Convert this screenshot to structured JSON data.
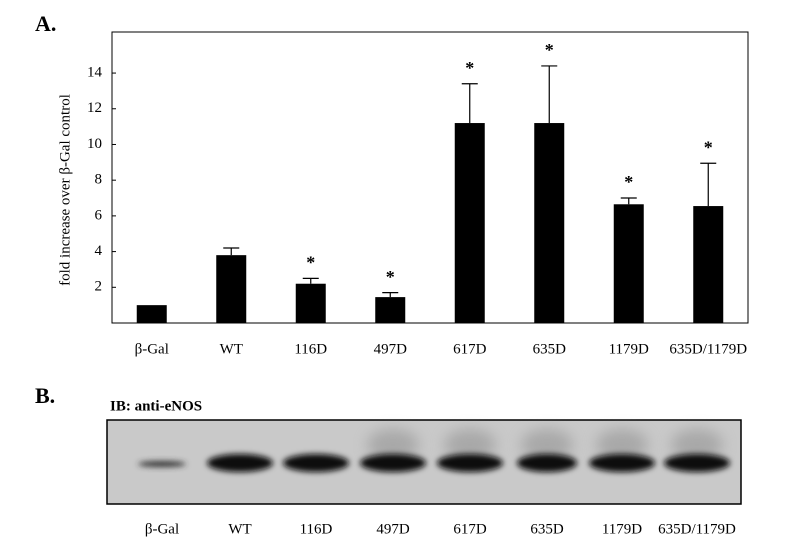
{
  "panel_a_label": "A.",
  "panel_b_label": "B.",
  "chart_data": {
    "type": "bar",
    "y_label": "fold increase over β-Gal control",
    "categories": [
      "β-Gal",
      "WT",
      "116D",
      "497D",
      "617D",
      "635D",
      "1179D",
      "635D/1179D"
    ],
    "values": [
      1.0,
      3.8,
      2.2,
      1.45,
      11.2,
      11.2,
      6.65,
      6.55
    ],
    "errors": [
      0,
      0.4,
      0.3,
      0.25,
      2.2,
      3.2,
      0.35,
      2.4
    ],
    "markers": [
      null,
      null,
      "*",
      "*",
      "*",
      "*",
      "*",
      "*"
    ],
    "color": "#000000",
    "ylim": [
      0,
      16.3
    ],
    "yticks": [
      2,
      4,
      6,
      8,
      10,
      12,
      14
    ]
  },
  "blot": {
    "title": "IB: anti-eNOS",
    "lanes": [
      "β-Gal",
      "WT",
      "116D",
      "497D",
      "617D",
      "635D",
      "1179D",
      "635D/1179D"
    ]
  }
}
